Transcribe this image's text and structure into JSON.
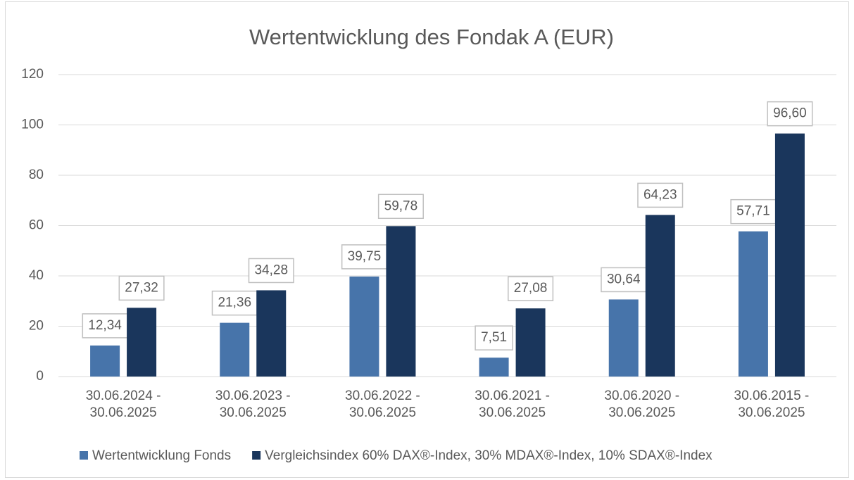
{
  "chart_data": {
    "type": "bar",
    "title": "Wertentwicklung des Fondak A (EUR)",
    "categories": [
      "30.06.2024 - 30.06.2025",
      "30.06.2023 - 30.06.2025",
      "30.06.2022 - 30.06.2025",
      "30.06.2021 - 30.06.2025",
      "30.06.2020 - 30.06.2025",
      "30.06.2015 - 30.06.2025"
    ],
    "series": [
      {
        "name": "Wertentwicklung Fonds",
        "color": "#4774aa",
        "values": [
          12.34,
          21.36,
          39.75,
          7.51,
          30.64,
          57.71
        ],
        "value_labels": [
          "12,34",
          "21,36",
          "39,75",
          "7,51",
          "30,64",
          "57,71"
        ]
      },
      {
        "name": "Vergleichsindex 60% DAX®-Index, 30% MDAX®-Index, 10% SDAX®-Index",
        "color": "#1a365c",
        "values": [
          27.32,
          34.28,
          59.78,
          27.08,
          64.23,
          96.6
        ],
        "value_labels": [
          "27,32",
          "34,28",
          "59,78",
          "27,08",
          "64,23",
          "96,60"
        ]
      }
    ],
    "ylim": [
      0,
      120
    ],
    "yticks": [
      0,
      20,
      40,
      60,
      80,
      100,
      120
    ],
    "grid": true,
    "legend": "bottom"
  }
}
